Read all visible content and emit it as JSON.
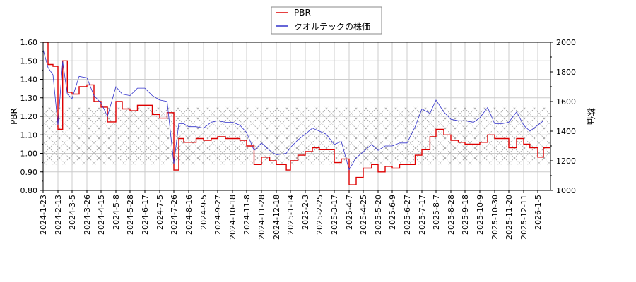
{
  "chart_data": {
    "type": "line",
    "title": "",
    "legend": {
      "position": "top-center",
      "entries": [
        {
          "label": "PBR",
          "color": "#dd0000"
        },
        {
          "label": "クオルテックの株価",
          "color": "#3333cc"
        }
      ]
    },
    "xlabel": "",
    "ylabel_left": "PBR",
    "ylabel_right": "株価",
    "ylim_left": [
      0.8,
      1.6
    ],
    "ylim_right": [
      1000,
      2000
    ],
    "yticks_left": [
      "0.80",
      "0.90",
      "1.00",
      "1.10",
      "1.20",
      "1.30",
      "1.40",
      "1.50",
      "1.60"
    ],
    "yticks_right": [
      "1000",
      "1200",
      "1400",
      "1600",
      "1800",
      "2000"
    ],
    "x_tick_labels": [
      "2024-1-23",
      "2024-2-13",
      "2024-3-5",
      "2024-3-26",
      "2024-4-15",
      "2024-5-8",
      "2024-5-28",
      "2024-6-17",
      "2024-7-5",
      "2024-7-26",
      "2024-8-16",
      "2024-9-5",
      "2024-9-27",
      "2024-10-18",
      "2024-11-8",
      "2024-11-28",
      "2024-12-18",
      "2025-1-14",
      "2025-2-3",
      "2025-2-25",
      "2025-3-17",
      "2025-4-7",
      "2025-4-25",
      "2025-5-20",
      "2025-6-9",
      "2025-6-27",
      "2025-7-17",
      "2025-8-7",
      "2025-8-28",
      "2025-9-18",
      "2025-10-9",
      "2025-10-30",
      "2025-11-20",
      "2025-12-11",
      "2026-1-5"
    ],
    "grid": true,
    "hatched_band_pbr": [
      0.94,
      1.25
    ],
    "series": [
      {
        "name": "PBR",
        "axis": "left",
        "color": "#dd0000",
        "x": [
          "2024-1-23",
          "2024-1-30",
          "2024-2-6",
          "2024-2-13",
          "2024-2-20",
          "2024-2-27",
          "2024-3-5",
          "2024-3-15",
          "2024-3-26",
          "2024-4-5",
          "2024-4-15",
          "2024-4-25",
          "2024-5-8",
          "2024-5-17",
          "2024-5-28",
          "2024-6-7",
          "2024-6-17",
          "2024-6-26",
          "2024-7-5",
          "2024-7-16",
          "2024-7-26",
          "2024-8-2",
          "2024-8-9",
          "2024-8-16",
          "2024-8-26",
          "2024-9-5",
          "2024-9-17",
          "2024-9-27",
          "2024-10-8",
          "2024-10-18",
          "2024-10-29",
          "2024-11-8",
          "2024-11-18",
          "2024-11-28",
          "2024-12-9",
          "2024-12-18",
          "2025-1-6",
          "2025-1-14",
          "2025-1-24",
          "2025-2-3",
          "2025-2-14",
          "2025-2-25",
          "2025-3-6",
          "2025-3-17",
          "2025-3-27",
          "2025-4-7",
          "2025-4-16",
          "2025-4-25",
          "2025-5-9",
          "2025-5-20",
          "2025-5-30",
          "2025-6-9",
          "2025-6-18",
          "2025-6-27",
          "2025-7-8",
          "2025-7-17",
          "2025-7-29",
          "2025-8-7",
          "2025-8-18",
          "2025-8-28",
          "2025-9-8",
          "2025-9-18",
          "2025-9-30",
          "2025-10-9",
          "2025-10-20",
          "2025-10-30",
          "2025-11-10",
          "2025-11-20",
          "2025-12-1",
          "2025-12-11",
          "2025-12-22",
          "2026-1-5",
          "2026-1-15"
        ],
        "values": [
          1.6,
          1.48,
          1.47,
          1.13,
          1.5,
          1.33,
          1.32,
          1.36,
          1.37,
          1.28,
          1.25,
          1.17,
          1.28,
          1.24,
          1.23,
          1.26,
          1.26,
          1.21,
          1.19,
          1.22,
          0.91,
          1.08,
          1.06,
          1.06,
          1.08,
          1.07,
          1.08,
          1.09,
          1.08,
          1.08,
          1.07,
          1.04,
          0.94,
          0.98,
          0.96,
          0.94,
          0.91,
          0.96,
          0.99,
          1.01,
          1.03,
          1.02,
          1.02,
          0.95,
          0.97,
          0.83,
          0.87,
          0.92,
          0.94,
          0.9,
          0.93,
          0.92,
          0.94,
          0.94,
          0.99,
          1.02,
          1.09,
          1.13,
          1.1,
          1.07,
          1.06,
          1.05,
          1.05,
          1.06,
          1.1,
          1.08,
          1.08,
          1.03,
          1.08,
          1.05,
          1.03,
          0.98,
          1.03
        ]
      },
      {
        "name": "クオルテックの株価",
        "axis": "right",
        "color": "#3333cc",
        "x": [
          "2024-1-23",
          "2024-1-30",
          "2024-2-6",
          "2024-2-13",
          "2024-2-20",
          "2024-2-27",
          "2024-3-5",
          "2024-3-15",
          "2024-3-26",
          "2024-4-5",
          "2024-4-15",
          "2024-4-25",
          "2024-5-8",
          "2024-5-17",
          "2024-5-28",
          "2024-6-7",
          "2024-6-17",
          "2024-6-26",
          "2024-7-5",
          "2024-7-16",
          "2024-7-26",
          "2024-8-2",
          "2024-8-9",
          "2024-8-16",
          "2024-8-26",
          "2024-9-5",
          "2024-9-17",
          "2024-9-27",
          "2024-10-8",
          "2024-10-18",
          "2024-10-29",
          "2024-11-8",
          "2024-11-18",
          "2024-11-28",
          "2024-12-9",
          "2024-12-18",
          "2025-1-6",
          "2025-1-14",
          "2025-1-24",
          "2025-2-3",
          "2025-2-14",
          "2025-2-25",
          "2025-3-6",
          "2025-3-17",
          "2025-3-27",
          "2025-4-7",
          "2025-4-16",
          "2025-4-25",
          "2025-5-9",
          "2025-5-20",
          "2025-5-30",
          "2025-6-9",
          "2025-6-18",
          "2025-6-27",
          "2025-7-8",
          "2025-7-17",
          "2025-7-29",
          "2025-8-7",
          "2025-8-18",
          "2025-8-28",
          "2025-9-8",
          "2025-9-18",
          "2025-9-30",
          "2025-10-9",
          "2025-10-20",
          "2025-10-30",
          "2025-11-10",
          "2025-11-20",
          "2025-12-1",
          "2025-12-11",
          "2025-12-22",
          "2026-1-5",
          "2026-1-15"
        ],
        "values": [
          1950,
          1830,
          1780,
          1440,
          1870,
          1650,
          1620,
          1770,
          1760,
          1640,
          1590,
          1500,
          1700,
          1650,
          1640,
          1690,
          1690,
          1640,
          1610,
          1600,
          1180,
          1450,
          1450,
          1430,
          1430,
          1420,
          1460,
          1470,
          1460,
          1460,
          1440,
          1390,
          1270,
          1320,
          1270,
          1240,
          1250,
          1290,
          1340,
          1380,
          1420,
          1400,
          1380,
          1310,
          1330,
          1140,
          1220,
          1260,
          1310,
          1270,
          1300,
          1300,
          1320,
          1320,
          1430,
          1550,
          1520,
          1610,
          1530,
          1480,
          1470,
          1470,
          1460,
          1490,
          1560,
          1450,
          1450,
          1460,
          1530,
          1440,
          1400,
          1440,
          1470
        ]
      }
    ]
  }
}
